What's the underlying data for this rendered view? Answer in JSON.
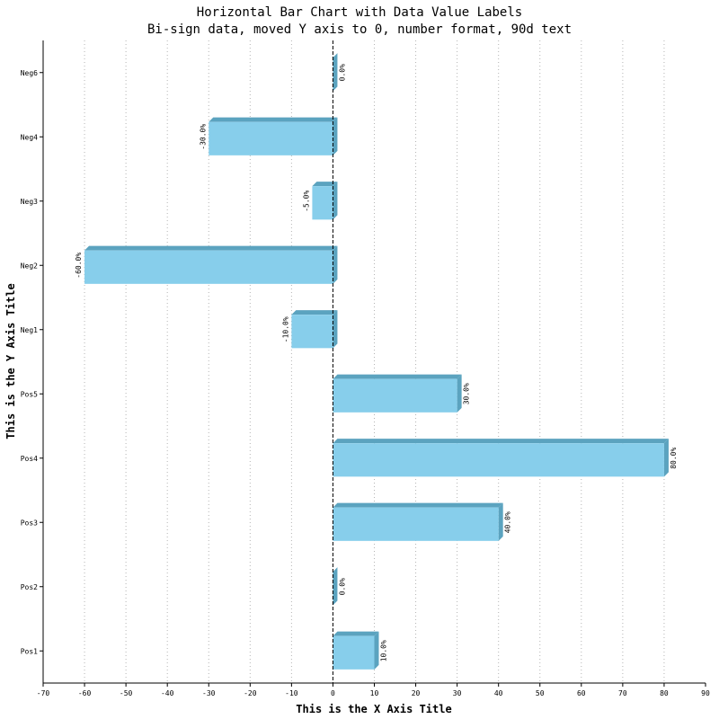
{
  "chart_data": {
    "type": "bar",
    "orientation": "horizontal",
    "title": "Horizontal Bar Chart with Data Value Labels",
    "subtitle": "Bi-sign data, moved Y axis to 0, number format, 90d text",
    "xlabel": "This is the X Axis Title",
    "ylabel": "This is the Y Axis Title",
    "xlim": [
      -70,
      90
    ],
    "x_ticks": [
      -70,
      -60,
      -50,
      -40,
      -30,
      -20,
      -10,
      0,
      10,
      20,
      30,
      40,
      50,
      60,
      70,
      80,
      90
    ],
    "categories": [
      "Pos1",
      "Pos2",
      "Pos3",
      "Pos4",
      "Pos5",
      "Neg1",
      "Neg2",
      "Neg3",
      "Neg4",
      "Neg6"
    ],
    "values": [
      10,
      0,
      40,
      80,
      30,
      -10,
      -60,
      -5,
      -30,
      0
    ],
    "value_labels": [
      "10.0%",
      "0.0%",
      "40.0%",
      "80.0%",
      "30.0%",
      "-10.0%",
      "-60.0%",
      "-5.0%",
      "-30.0%",
      "0.0%"
    ],
    "grid": "vertical dotted",
    "legend": "none",
    "colors": {
      "bar_front": "#87ceeb",
      "bar_side": "#5ba3bf"
    }
  }
}
